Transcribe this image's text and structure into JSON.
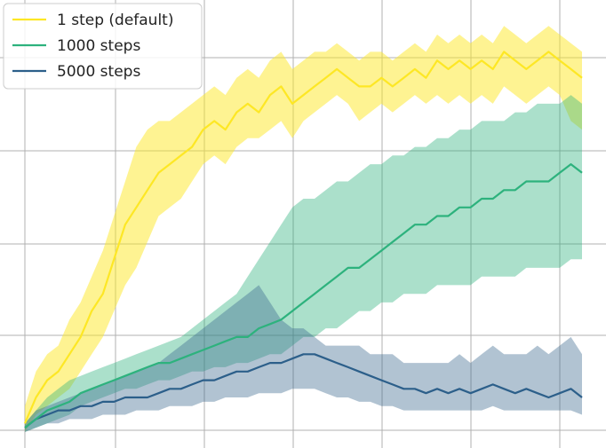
{
  "chart_data": {
    "type": "line",
    "title": "",
    "xlabel": "",
    "ylabel": "",
    "xlim": [
      0,
      100
    ],
    "ylim": [
      0,
      100
    ],
    "grid": true,
    "legend_position": "top-left",
    "series": [
      {
        "name": "1 step (default)",
        "color": "#fde725",
        "band_color": "#fde725",
        "x": [
          0,
          2,
          4,
          6,
          8,
          10,
          12,
          14,
          16,
          18,
          20,
          22,
          24,
          26,
          28,
          30,
          32,
          34,
          36,
          38,
          40,
          42,
          44,
          46,
          48,
          50,
          52,
          54,
          56,
          58,
          60,
          62,
          64,
          66,
          68,
          70,
          72,
          74,
          76,
          78,
          80,
          82,
          84,
          86,
          88,
          90,
          92,
          94,
          96,
          98,
          100
        ],
        "y": [
          2,
          8,
          12,
          14,
          18,
          22,
          28,
          32,
          40,
          48,
          52,
          56,
          60,
          62,
          64,
          66,
          70,
          72,
          70,
          74,
          76,
          74,
          78,
          80,
          76,
          78,
          80,
          82,
          84,
          82,
          80,
          80,
          82,
          80,
          82,
          84,
          82,
          86,
          84,
          86,
          84,
          86,
          84,
          88,
          86,
          84,
          86,
          88,
          86,
          84,
          82
        ],
        "lower": [
          0,
          4,
          6,
          8,
          10,
          14,
          18,
          22,
          28,
          34,
          38,
          44,
          50,
          52,
          54,
          58,
          62,
          64,
          62,
          66,
          68,
          68,
          70,
          72,
          68,
          72,
          74,
          76,
          78,
          76,
          72,
          74,
          76,
          74,
          76,
          78,
          76,
          78,
          76,
          78,
          76,
          78,
          76,
          80,
          78,
          76,
          78,
          80,
          78,
          72,
          70
        ],
        "upper": [
          6,
          14,
          18,
          20,
          26,
          30,
          36,
          42,
          50,
          58,
          66,
          70,
          72,
          72,
          74,
          76,
          78,
          80,
          78,
          82,
          84,
          82,
          86,
          88,
          84,
          86,
          88,
          88,
          90,
          88,
          86,
          88,
          88,
          86,
          88,
          90,
          88,
          92,
          90,
          92,
          90,
          92,
          90,
          94,
          92,
          90,
          92,
          94,
          92,
          90,
          88
        ]
      },
      {
        "name": "1000 steps",
        "color": "#2db27d",
        "band_color": "#2db27d",
        "x": [
          0,
          2,
          4,
          6,
          8,
          10,
          12,
          14,
          16,
          18,
          20,
          22,
          24,
          26,
          28,
          30,
          32,
          34,
          36,
          38,
          40,
          42,
          44,
          46,
          48,
          50,
          52,
          54,
          56,
          58,
          60,
          62,
          64,
          66,
          68,
          70,
          72,
          74,
          76,
          78,
          80,
          82,
          84,
          86,
          88,
          90,
          92,
          94,
          96,
          98,
          100
        ],
        "y": [
          1,
          3,
          5,
          6,
          7,
          9,
          10,
          11,
          12,
          13,
          14,
          15,
          16,
          16,
          17,
          18,
          19,
          20,
          21,
          22,
          22,
          24,
          25,
          26,
          28,
          30,
          32,
          34,
          36,
          38,
          38,
          40,
          42,
          44,
          46,
          48,
          48,
          50,
          50,
          52,
          52,
          54,
          54,
          56,
          56,
          58,
          58,
          58,
          60,
          62,
          60
        ],
        "lower": [
          0,
          1,
          2,
          3,
          4,
          6,
          7,
          8,
          9,
          10,
          10,
          11,
          12,
          12,
          13,
          14,
          14,
          15,
          15,
          16,
          16,
          17,
          18,
          18,
          20,
          22,
          22,
          24,
          24,
          26,
          28,
          28,
          30,
          30,
          32,
          32,
          32,
          34,
          34,
          34,
          34,
          36,
          36,
          36,
          36,
          38,
          38,
          38,
          38,
          40,
          40
        ],
        "upper": [
          2,
          5,
          8,
          10,
          12,
          13,
          14,
          15,
          16,
          17,
          18,
          19,
          20,
          21,
          22,
          24,
          26,
          28,
          30,
          32,
          36,
          40,
          44,
          48,
          52,
          54,
          54,
          56,
          58,
          58,
          60,
          62,
          62,
          64,
          64,
          66,
          66,
          68,
          68,
          70,
          70,
          72,
          72,
          72,
          74,
          74,
          76,
          76,
          76,
          78,
          76
        ]
      },
      {
        "name": "5000 steps",
        "color": "#2c5f8a",
        "band_color": "#3b6a8f",
        "x": [
          0,
          2,
          4,
          6,
          8,
          10,
          12,
          14,
          16,
          18,
          20,
          22,
          24,
          26,
          28,
          30,
          32,
          34,
          36,
          38,
          40,
          42,
          44,
          46,
          48,
          50,
          52,
          54,
          56,
          58,
          60,
          62,
          64,
          66,
          68,
          70,
          72,
          74,
          76,
          78,
          80,
          82,
          84,
          86,
          88,
          90,
          92,
          94,
          96,
          98,
          100
        ],
        "y": [
          1,
          3,
          4,
          5,
          5,
          6,
          6,
          7,
          7,
          8,
          8,
          8,
          9,
          10,
          10,
          11,
          12,
          12,
          13,
          14,
          14,
          15,
          16,
          16,
          17,
          18,
          18,
          17,
          16,
          15,
          14,
          13,
          12,
          11,
          10,
          10,
          9,
          10,
          9,
          10,
          9,
          10,
          11,
          10,
          9,
          10,
          9,
          8,
          9,
          10,
          8
        ],
        "lower": [
          0,
          1,
          2,
          2,
          3,
          3,
          3,
          4,
          4,
          4,
          5,
          5,
          5,
          6,
          6,
          6,
          7,
          7,
          8,
          8,
          8,
          9,
          9,
          9,
          10,
          10,
          10,
          9,
          8,
          8,
          7,
          7,
          6,
          6,
          5,
          5,
          5,
          5,
          5,
          5,
          5,
          5,
          6,
          5,
          5,
          5,
          5,
          5,
          5,
          5,
          4
        ],
        "upper": [
          2,
          5,
          6,
          7,
          8,
          9,
          10,
          11,
          12,
          13,
          14,
          15,
          16,
          18,
          20,
          22,
          24,
          26,
          28,
          30,
          32,
          34,
          30,
          26,
          24,
          24,
          22,
          20,
          20,
          20,
          20,
          18,
          18,
          18,
          16,
          16,
          16,
          16,
          16,
          18,
          16,
          18,
          20,
          18,
          18,
          18,
          20,
          18,
          20,
          22,
          18
        ]
      }
    ]
  }
}
